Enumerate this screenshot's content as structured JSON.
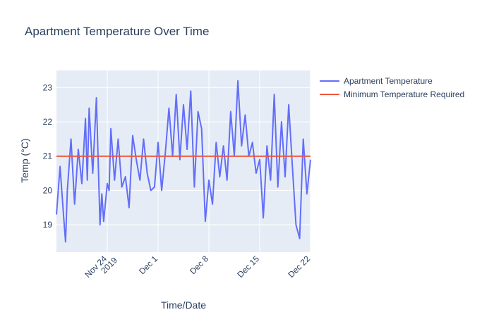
{
  "chart_data": {
    "type": "line",
    "title": "Apartment Temperature Over Time",
    "xlabel": "Time/Date",
    "ylabel": "Temp (°C)",
    "x_range": [
      "2019-11-17",
      "2019-12-22"
    ],
    "ylim": [
      18.2,
      23.5
    ],
    "y_ticks": [
      19,
      20,
      21,
      22,
      23
    ],
    "x_ticks": [
      {
        "date": "2019-11-24",
        "label": "Nov 24",
        "label2": "2019"
      },
      {
        "date": "2019-12-01",
        "label": "Dec 1",
        "label2": ""
      },
      {
        "date": "2019-12-08",
        "label": "Dec 8",
        "label2": ""
      },
      {
        "date": "2019-12-15",
        "label": "Dec 15",
        "label2": ""
      },
      {
        "date": "2019-12-22",
        "label": "Dec 22",
        "label2": ""
      }
    ],
    "grid": true,
    "legend_position": "top-right",
    "series": [
      {
        "name": "Apartment Temperature",
        "color": "#636efa",
        "x": [
          "2019-11-17",
          "2019-11-17T12:00",
          "2019-11-18",
          "2019-11-18T06:00",
          "2019-11-18T12:00",
          "2019-11-19",
          "2019-11-19T12:00",
          "2019-11-20",
          "2019-11-20T12:00",
          "2019-11-21",
          "2019-11-21T06:00",
          "2019-11-21T12:00",
          "2019-11-22",
          "2019-11-22T12:00",
          "2019-11-23",
          "2019-11-23T06:00",
          "2019-11-23T12:00",
          "2019-11-24",
          "2019-11-24T06:00",
          "2019-11-24T12:00",
          "2019-11-25",
          "2019-11-25T12:00",
          "2019-11-26",
          "2019-11-26T12:00",
          "2019-11-27",
          "2019-11-27T12:00",
          "2019-11-28",
          "2019-11-28T12:00",
          "2019-11-29",
          "2019-11-29T12:00",
          "2019-11-30",
          "2019-11-30T12:00",
          "2019-12-01",
          "2019-12-01T12:00",
          "2019-12-02",
          "2019-12-02T12:00",
          "2019-12-03",
          "2019-12-03T12:00",
          "2019-12-04",
          "2019-12-04T12:00",
          "2019-12-05",
          "2019-12-05T12:00",
          "2019-12-06",
          "2019-12-06T12:00",
          "2019-12-07",
          "2019-12-07T12:00",
          "2019-12-08",
          "2019-12-08T12:00",
          "2019-12-09",
          "2019-12-09T12:00",
          "2019-12-10",
          "2019-12-10T12:00",
          "2019-12-11",
          "2019-12-11T12:00",
          "2019-12-12",
          "2019-12-12T12:00",
          "2019-12-13",
          "2019-12-13T12:00",
          "2019-12-14",
          "2019-12-14T12:00",
          "2019-12-15",
          "2019-12-15T12:00",
          "2019-12-16",
          "2019-12-16T12:00",
          "2019-12-17",
          "2019-12-17T12:00",
          "2019-12-18",
          "2019-12-18T12:00",
          "2019-12-19",
          "2019-12-19T12:00",
          "2019-12-20",
          "2019-12-20T12:00",
          "2019-12-21",
          "2019-12-21T12:00",
          "2019-12-22"
        ],
        "y": [
          19.3,
          20.7,
          19.2,
          18.5,
          20.0,
          21.5,
          19.6,
          21.2,
          20.2,
          22.1,
          20.3,
          22.4,
          20.5,
          22.7,
          19.0,
          19.9,
          19.1,
          20.2,
          20.0,
          21.8,
          20.3,
          21.5,
          20.1,
          20.4,
          19.5,
          21.6,
          20.9,
          20.3,
          21.5,
          20.5,
          20.0,
          20.1,
          21.4,
          20.0,
          21.1,
          22.4,
          21.0,
          22.8,
          20.9,
          22.5,
          21.2,
          22.9,
          20.1,
          22.3,
          21.8,
          19.1,
          20.3,
          19.6,
          21.4,
          20.4,
          21.3,
          20.3,
          22.3,
          21.0,
          23.2,
          21.3,
          22.2,
          21.0,
          21.4,
          20.5,
          20.9,
          19.2,
          21.3,
          20.3,
          22.8,
          20.1,
          22.0,
          20.4,
          22.5,
          20.7,
          19.0,
          18.6,
          21.5,
          19.9,
          20.9
        ]
      },
      {
        "name": "Minimum Temperature Required",
        "color": "#ef553b",
        "x": [
          "2019-11-17",
          "2019-12-22"
        ],
        "y": [
          21,
          21
        ]
      }
    ]
  }
}
